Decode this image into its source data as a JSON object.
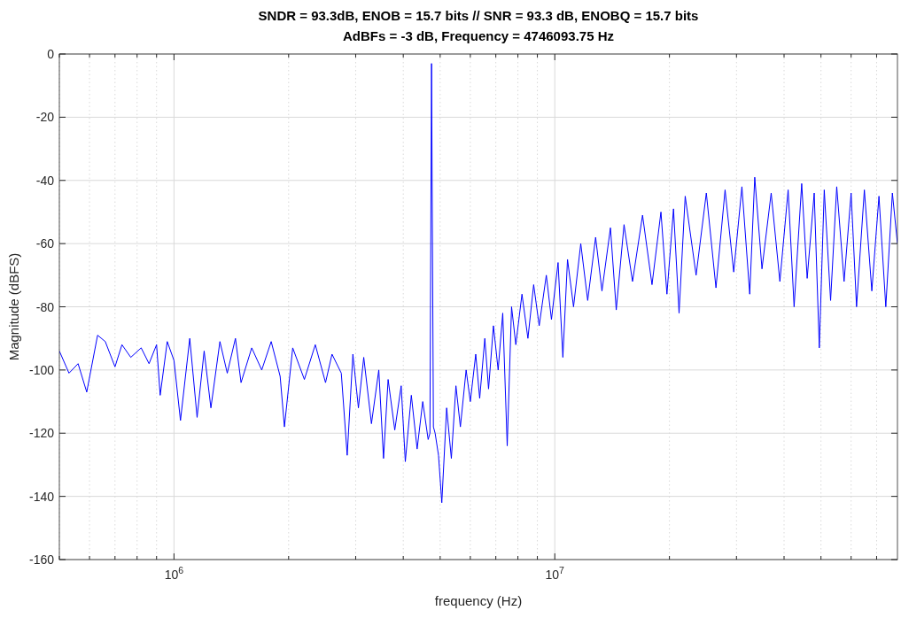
{
  "chart_data": {
    "type": "line",
    "title": "SNDR = 93.3dB, ENOB = 15.7 bits // SNR = 93.3 dB, ENOBQ = 15.7 bits",
    "subtitle": "AdBFs = -3 dB, Frequency = 4746093.75 Hz",
    "xlabel": "frequency (Hz)",
    "ylabel": "Magnitude (dBFS)",
    "log": "x",
    "grid": true,
    "line_style": "solid",
    "xlim": [
      500000,
      79400000
    ],
    "ylim": [
      -160,
      0
    ],
    "xticks": [
      {
        "value": 500000,
        "label": null
      },
      {
        "value": 600000,
        "label": null
      },
      {
        "value": 700000,
        "label": null
      },
      {
        "value": 800000,
        "label": null
      },
      {
        "value": 900000,
        "label": null
      },
      {
        "value": 1000000,
        "label": "10$^{6}$"
      },
      {
        "value": 2000000,
        "label": null
      },
      {
        "value": 3000000,
        "label": null
      },
      {
        "value": 4000000,
        "label": null
      },
      {
        "value": 5000000,
        "label": null
      },
      {
        "value": 6000000,
        "label": null
      },
      {
        "value": 7000000,
        "label": null
      },
      {
        "value": 8000000,
        "label": null
      },
      {
        "value": 9000000,
        "label": null
      },
      {
        "value": 10000000,
        "label": "10$^{7}$"
      },
      {
        "value": 20000000,
        "label": null
      },
      {
        "value": 30000000,
        "label": null
      },
      {
        "value": 40000000,
        "label": null
      },
      {
        "value": 50000000,
        "label": null
      },
      {
        "value": 60000000,
        "label": null
      },
      {
        "value": 70000000,
        "label": null
      }
    ],
    "yticks": [
      -160,
      -140,
      -120,
      -100,
      -80,
      -60,
      -40,
      -20,
      0
    ],
    "series": [
      {
        "color": "#0000ff",
        "x": [
          500000,
          530000,
          560000,
          590000,
          630000,
          660000,
          700000,
          730000,
          770000,
          820000,
          860000,
          900000,
          920000,
          960000,
          1000000,
          1040000,
          1100000,
          1150000,
          1200000,
          1250000,
          1320000,
          1380000,
          1450000,
          1500000,
          1600000,
          1700000,
          1800000,
          1900000,
          1950000,
          2050000,
          2200000,
          2350000,
          2500000,
          2600000,
          2750000,
          2850000,
          2950000,
          3050000,
          3150000,
          3300000,
          3450000,
          3550000,
          3650000,
          3800000,
          3950000,
          4050000,
          4200000,
          4350000,
          4500000,
          4650000,
          4700000,
          4746093.75,
          4800000,
          4850000,
          4950000,
          5050000,
          5200000,
          5350000,
          5500000,
          5650000,
          5850000,
          6000000,
          6200000,
          6350000,
          6550000,
          6700000,
          6900000,
          7100000,
          7300000,
          7500000,
          7700000,
          7900000,
          8200000,
          8500000,
          8800000,
          9100000,
          9500000,
          9800000,
          10200000,
          10500000,
          10800000,
          11200000,
          11700000,
          12200000,
          12800000,
          13300000,
          14000000,
          14500000,
          15200000,
          16000000,
          17000000,
          18000000,
          19000000,
          19700000,
          20500000,
          21200000,
          22000000,
          23500000,
          25000000,
          26500000,
          28000000,
          29500000,
          31000000,
          32500000,
          33500000,
          35000000,
          37000000,
          39000000,
          41000000,
          42500000,
          44500000,
          46000000,
          48000000,
          49500000,
          51000000,
          53000000,
          55000000,
          57500000,
          60000000,
          62000000,
          65000000,
          68000000,
          71000000,
          74000000,
          77000000,
          79400000
        ],
        "values": [
          -94,
          -101,
          -98,
          -107,
          -89,
          -91,
          -99,
          -92,
          -96,
          -93,
          -98,
          -92,
          -108,
          -91,
          -97,
          -116,
          -90,
          -115,
          -94,
          -112,
          -91,
          -101,
          -90,
          -104,
          -93,
          -100,
          -91,
          -102,
          -118,
          -93,
          -103,
          -92,
          -104,
          -95,
          -101,
          -127,
          -95,
          -112,
          -96,
          -117,
          -100,
          -128,
          -103,
          -119,
          -105,
          -129,
          -108,
          -125,
          -110,
          -122,
          -120,
          -3,
          -118,
          -120,
          -127,
          -142,
          -112,
          -128,
          -105,
          -118,
          -100,
          -110,
          -95,
          -109,
          -90,
          -106,
          -86,
          -100,
          -82,
          -124,
          -80,
          -92,
          -76,
          -90,
          -73,
          -86,
          -70,
          -84,
          -66,
          -96,
          -65,
          -80,
          -60,
          -78,
          -58,
          -75,
          -55,
          -81,
          -54,
          -72,
          -51,
          -73,
          -50,
          -76,
          -49,
          -82,
          -45,
          -70,
          -44,
          -74,
          -43,
          -69,
          -42,
          -76,
          -39,
          -68,
          -44,
          -72,
          -43,
          -80,
          -41,
          -71,
          -44,
          -93,
          -43,
          -78,
          -42,
          -72,
          -44,
          -80,
          -43,
          -75,
          -45,
          -80,
          -44,
          -60
        ]
      }
    ]
  }
}
